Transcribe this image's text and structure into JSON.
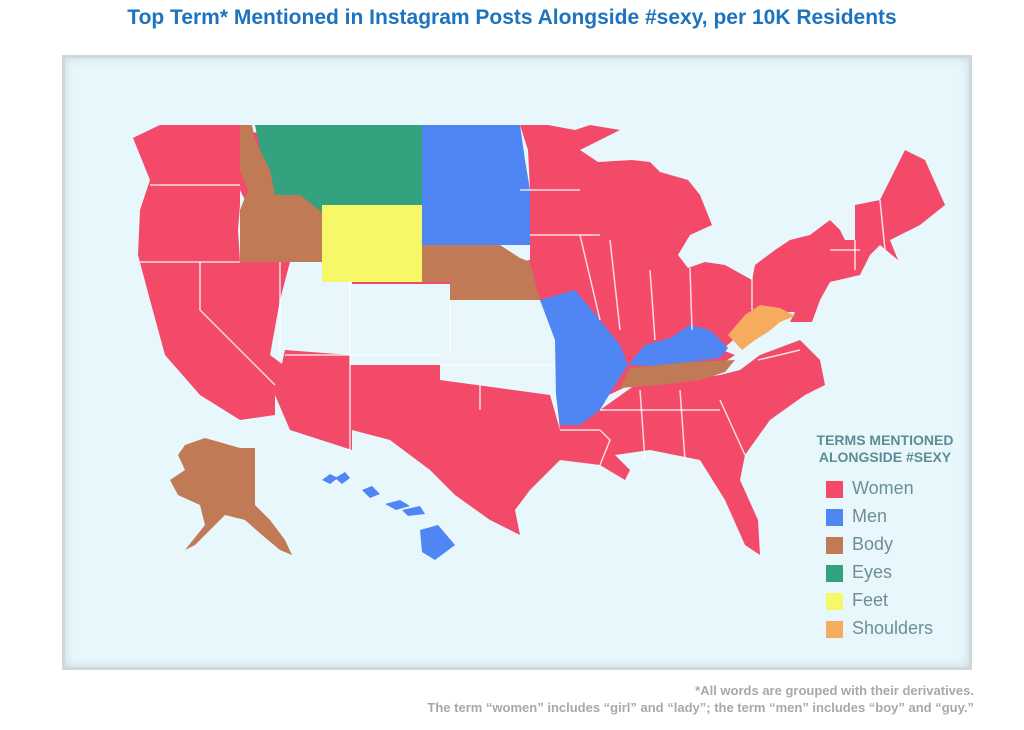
{
  "title": "Top Term* Mentioned in Instagram Posts Alongside #sexy, per 10K Residents",
  "legend": {
    "title_line1": "TERMS MENTIONED",
    "title_line2": "ALONGSIDE #SEXY",
    "items": [
      {
        "label": "Women",
        "color": "#f34a6a"
      },
      {
        "label": "Men",
        "color": "#4f86f3"
      },
      {
        "label": "Body",
        "color": "#c07a55"
      },
      {
        "label": "Eyes",
        "color": "#33a37f"
      },
      {
        "label": "Feet",
        "color": "#f7f868"
      },
      {
        "label": "Shoulders",
        "color": "#f6ab5e"
      }
    ]
  },
  "regions": {
    "women": "Women",
    "men": "Men",
    "body": "Body",
    "eyes": "Eyes",
    "feet": "Feet",
    "shoulders": "Shoulders"
  },
  "footnote": {
    "line1": "*All words are grouped with their derivatives.",
    "line2": "The term “women” includes “girl” and “lady”; the term “men” includes “boy” and “guy.”"
  }
}
